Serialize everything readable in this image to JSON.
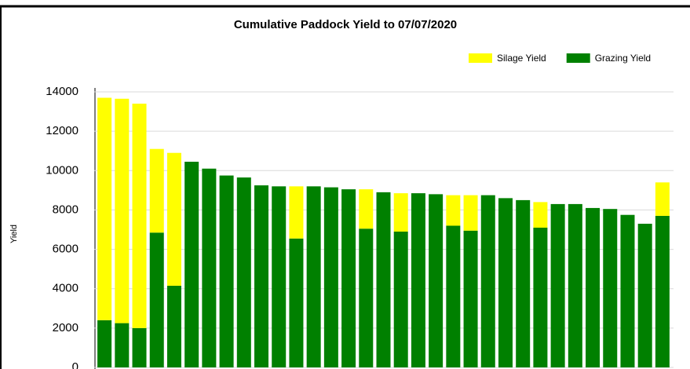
{
  "chart_data": {
    "type": "stacked_bar",
    "title": "Cumulative Paddock Yield to 07/07/2020",
    "y_label": "Yield",
    "categories": [
      null,
      null,
      null,
      null,
      null,
      null,
      null,
      null,
      null,
      null,
      null,
      null,
      null,
      null,
      null,
      null,
      null,
      null,
      null,
      null,
      null,
      null,
      null,
      null,
      null,
      null,
      null,
      null,
      null,
      null,
      null,
      null,
      null
    ],
    "series": [
      {
        "name": "Silage Yield",
        "color": "#ffff00",
        "values": [
          11300,
          11400,
          11400,
          4250,
          6750,
          0,
          0,
          0,
          0,
          0,
          0,
          2650,
          0,
          0,
          0,
          2000,
          0,
          1950,
          0,
          0,
          1550,
          1800,
          0,
          0,
          0,
          1300,
          0,
          0,
          0,
          0,
          0,
          0,
          1700
        ]
      },
      {
        "name": "Grazing Yield",
        "color": "#008000",
        "values": [
          2400,
          2250,
          2000,
          6850,
          4150,
          10450,
          10100,
          9750,
          9650,
          9250,
          9200,
          6550,
          9200,
          9150,
          9050,
          7050,
          8900,
          6900,
          8850,
          8800,
          7200,
          6950,
          8750,
          8600,
          8500,
          7100,
          8300,
          8300,
          8100,
          8050,
          7750,
          7300,
          7700
        ]
      }
    ],
    "ylim": [
      0,
      14000
    ],
    "yticks": [
      0,
      2000,
      4000,
      6000,
      8000,
      10000,
      12000,
      14000
    ],
    "grid": true,
    "legend": "top-right"
  }
}
